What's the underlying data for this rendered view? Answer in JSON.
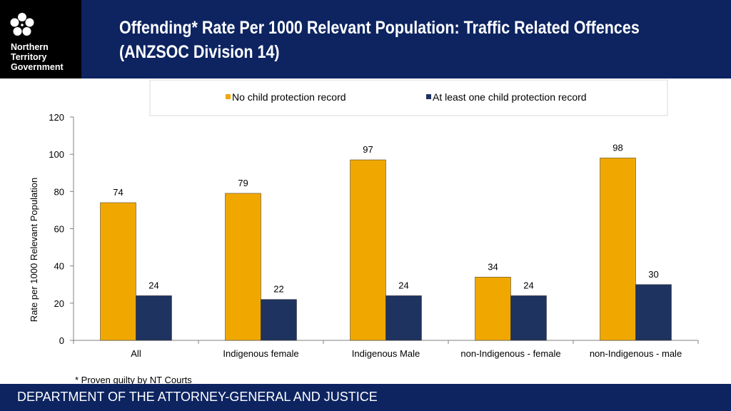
{
  "header": {
    "logo_lines": [
      "Northern",
      "Territory",
      "Government"
    ],
    "title_line1": "Offending* Rate Per 1000 Relevant Population: Traffic Related Offences",
    "title_line2": "(ANZSOC Division 14)"
  },
  "footnote": "* Proven guilty by NT Courts",
  "footer": {
    "text": "DEPARTMENT OF THE ATTORNEY-GENERAL AND JUSTICE"
  },
  "colors": {
    "series1": "#f0a800",
    "series2": "#1f3360",
    "header_bg": "#0d2461"
  },
  "chart_data": {
    "type": "bar",
    "categories": [
      "All",
      "Indigenous female",
      "Indigenous Male",
      "non-Indigenous - female",
      "non-Indigenous - male"
    ],
    "series": [
      {
        "name": "No child protection record",
        "values": [
          74,
          79,
          97,
          34,
          98
        ]
      },
      {
        "name": "At least one child protection record",
        "values": [
          24,
          22,
          24,
          24,
          30
        ]
      }
    ],
    "ylabel": "Rate per 1000 Relevant Population",
    "ylim": [
      0,
      120
    ],
    "yticks": [
      0,
      20,
      40,
      60,
      80,
      100,
      120
    ],
    "legend": "top"
  }
}
